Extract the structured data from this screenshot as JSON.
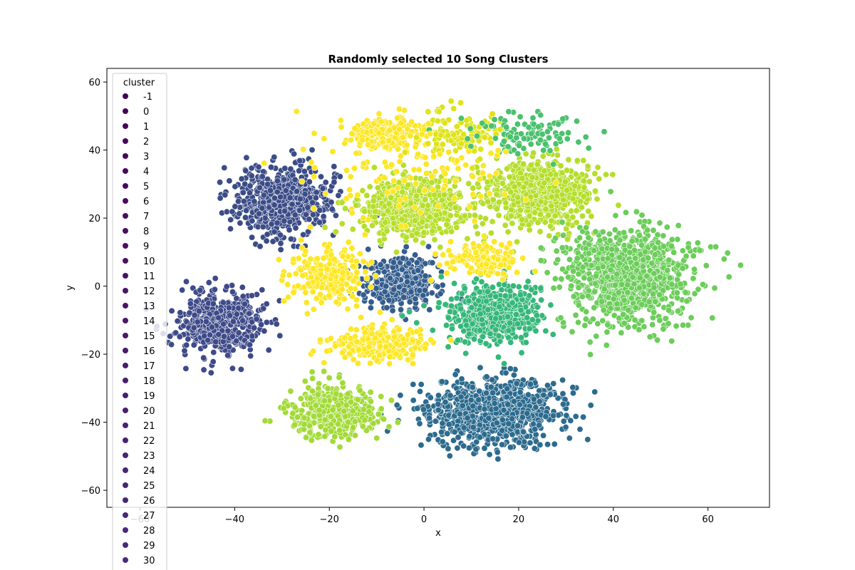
{
  "chart_data": {
    "type": "scatter",
    "title": "Randomly selected 10 Song Clusters",
    "xlabel": "x",
    "ylabel": "y",
    "xlim": [
      -67,
      73
    ],
    "ylim": [
      -65,
      64
    ],
    "xticks": [
      -60,
      -40,
      -20,
      0,
      20,
      40,
      60
    ],
    "yticks": [
      -60,
      -40,
      -20,
      0,
      20,
      40,
      60
    ],
    "xtick_labels": [
      "−60",
      "−40",
      "−20",
      "0",
      "20",
      "40",
      "60"
    ],
    "ytick_labels": [
      "−60",
      "−40",
      "−20",
      "0",
      "20",
      "40",
      "60"
    ],
    "grid": false,
    "legend": {
      "title": "cluster",
      "placement": "upper-left",
      "entries": [
        "-1",
        "0",
        "1",
        "2",
        "3",
        "4",
        "5",
        "6",
        "7",
        "8",
        "9",
        "10",
        "11",
        "12",
        "13",
        "14",
        "15",
        "16",
        "17",
        "18",
        "19",
        "20",
        "21",
        "22",
        "23",
        "24",
        "25",
        "26",
        "27",
        "28",
        "29",
        "30"
      ],
      "colors": [
        "#440154",
        "#440255",
        "#450457",
        "#450558",
        "#46075a",
        "#46085c",
        "#460a5d",
        "#460b5e",
        "#470d60",
        "#470e61",
        "#471063",
        "#471164",
        "#471365",
        "#481467",
        "#481668",
        "#481769",
        "#48186a",
        "#481a6c",
        "#481b6d",
        "#481c6e",
        "#481d6f",
        "#481f70",
        "#482071",
        "#482173",
        "#482374",
        "#482475",
        "#482576",
        "#482677",
        "#482878",
        "#482979",
        "#472a7a",
        "#472c7a"
      ]
    },
    "clusters": [
      {
        "center": [
          -30,
          25
        ],
        "spread": [
          8,
          8
        ],
        "count": 650,
        "color": "#3b4c87"
      },
      {
        "center": [
          -43,
          -11
        ],
        "spread": [
          7,
          7
        ],
        "count": 520,
        "color": "#3e4a89"
      },
      {
        "center": [
          -5,
          1
        ],
        "spread": [
          6,
          6
        ],
        "count": 380,
        "color": "#345d8d"
      },
      {
        "center": [
          15,
          -37
        ],
        "spread": [
          12,
          8
        ],
        "count": 800,
        "color": "#2c6b8e"
      },
      {
        "center": [
          -19,
          -37
        ],
        "spread": [
          7,
          6
        ],
        "count": 450,
        "color": "#a2da37"
      },
      {
        "center": [
          -2,
          23
        ],
        "spread": [
          9,
          7
        ],
        "count": 650,
        "color": "#b6de2b"
      },
      {
        "center": [
          24,
          27
        ],
        "spread": [
          9,
          8
        ],
        "count": 650,
        "color": "#b5de2b"
      },
      {
        "center": [
          15,
          -8
        ],
        "spread": [
          8,
          7
        ],
        "count": 550,
        "color": "#35b779"
      },
      {
        "center": [
          43,
          3
        ],
        "spread": [
          11,
          12
        ],
        "count": 950,
        "color": "#6ccd5a"
      },
      {
        "center": [
          -8,
          45
        ],
        "spread": [
          6,
          4
        ],
        "count": 220,
        "color": "#fde725"
      },
      {
        "center": [
          -20,
          3
        ],
        "spread": [
          6,
          7
        ],
        "count": 240,
        "color": "#fde725"
      },
      {
        "center": [
          -10,
          -17
        ],
        "spread": [
          8,
          4
        ],
        "count": 260,
        "color": "#fde725"
      },
      {
        "center": [
          13,
          8
        ],
        "spread": [
          6,
          4
        ],
        "count": 160,
        "color": "#fde725"
      },
      {
        "center": [
          8,
          45
        ],
        "spread": [
          8,
          6
        ],
        "count": 120,
        "color": "#dfe318"
      },
      {
        "center": [
          22,
          45
        ],
        "spread": [
          10,
          5
        ],
        "count": 100,
        "color": "#4ac16d"
      },
      {
        "center": [
          -5,
          32
        ],
        "spread": [
          18,
          12
        ],
        "count": 120,
        "color": "#fde725"
      }
    ]
  }
}
